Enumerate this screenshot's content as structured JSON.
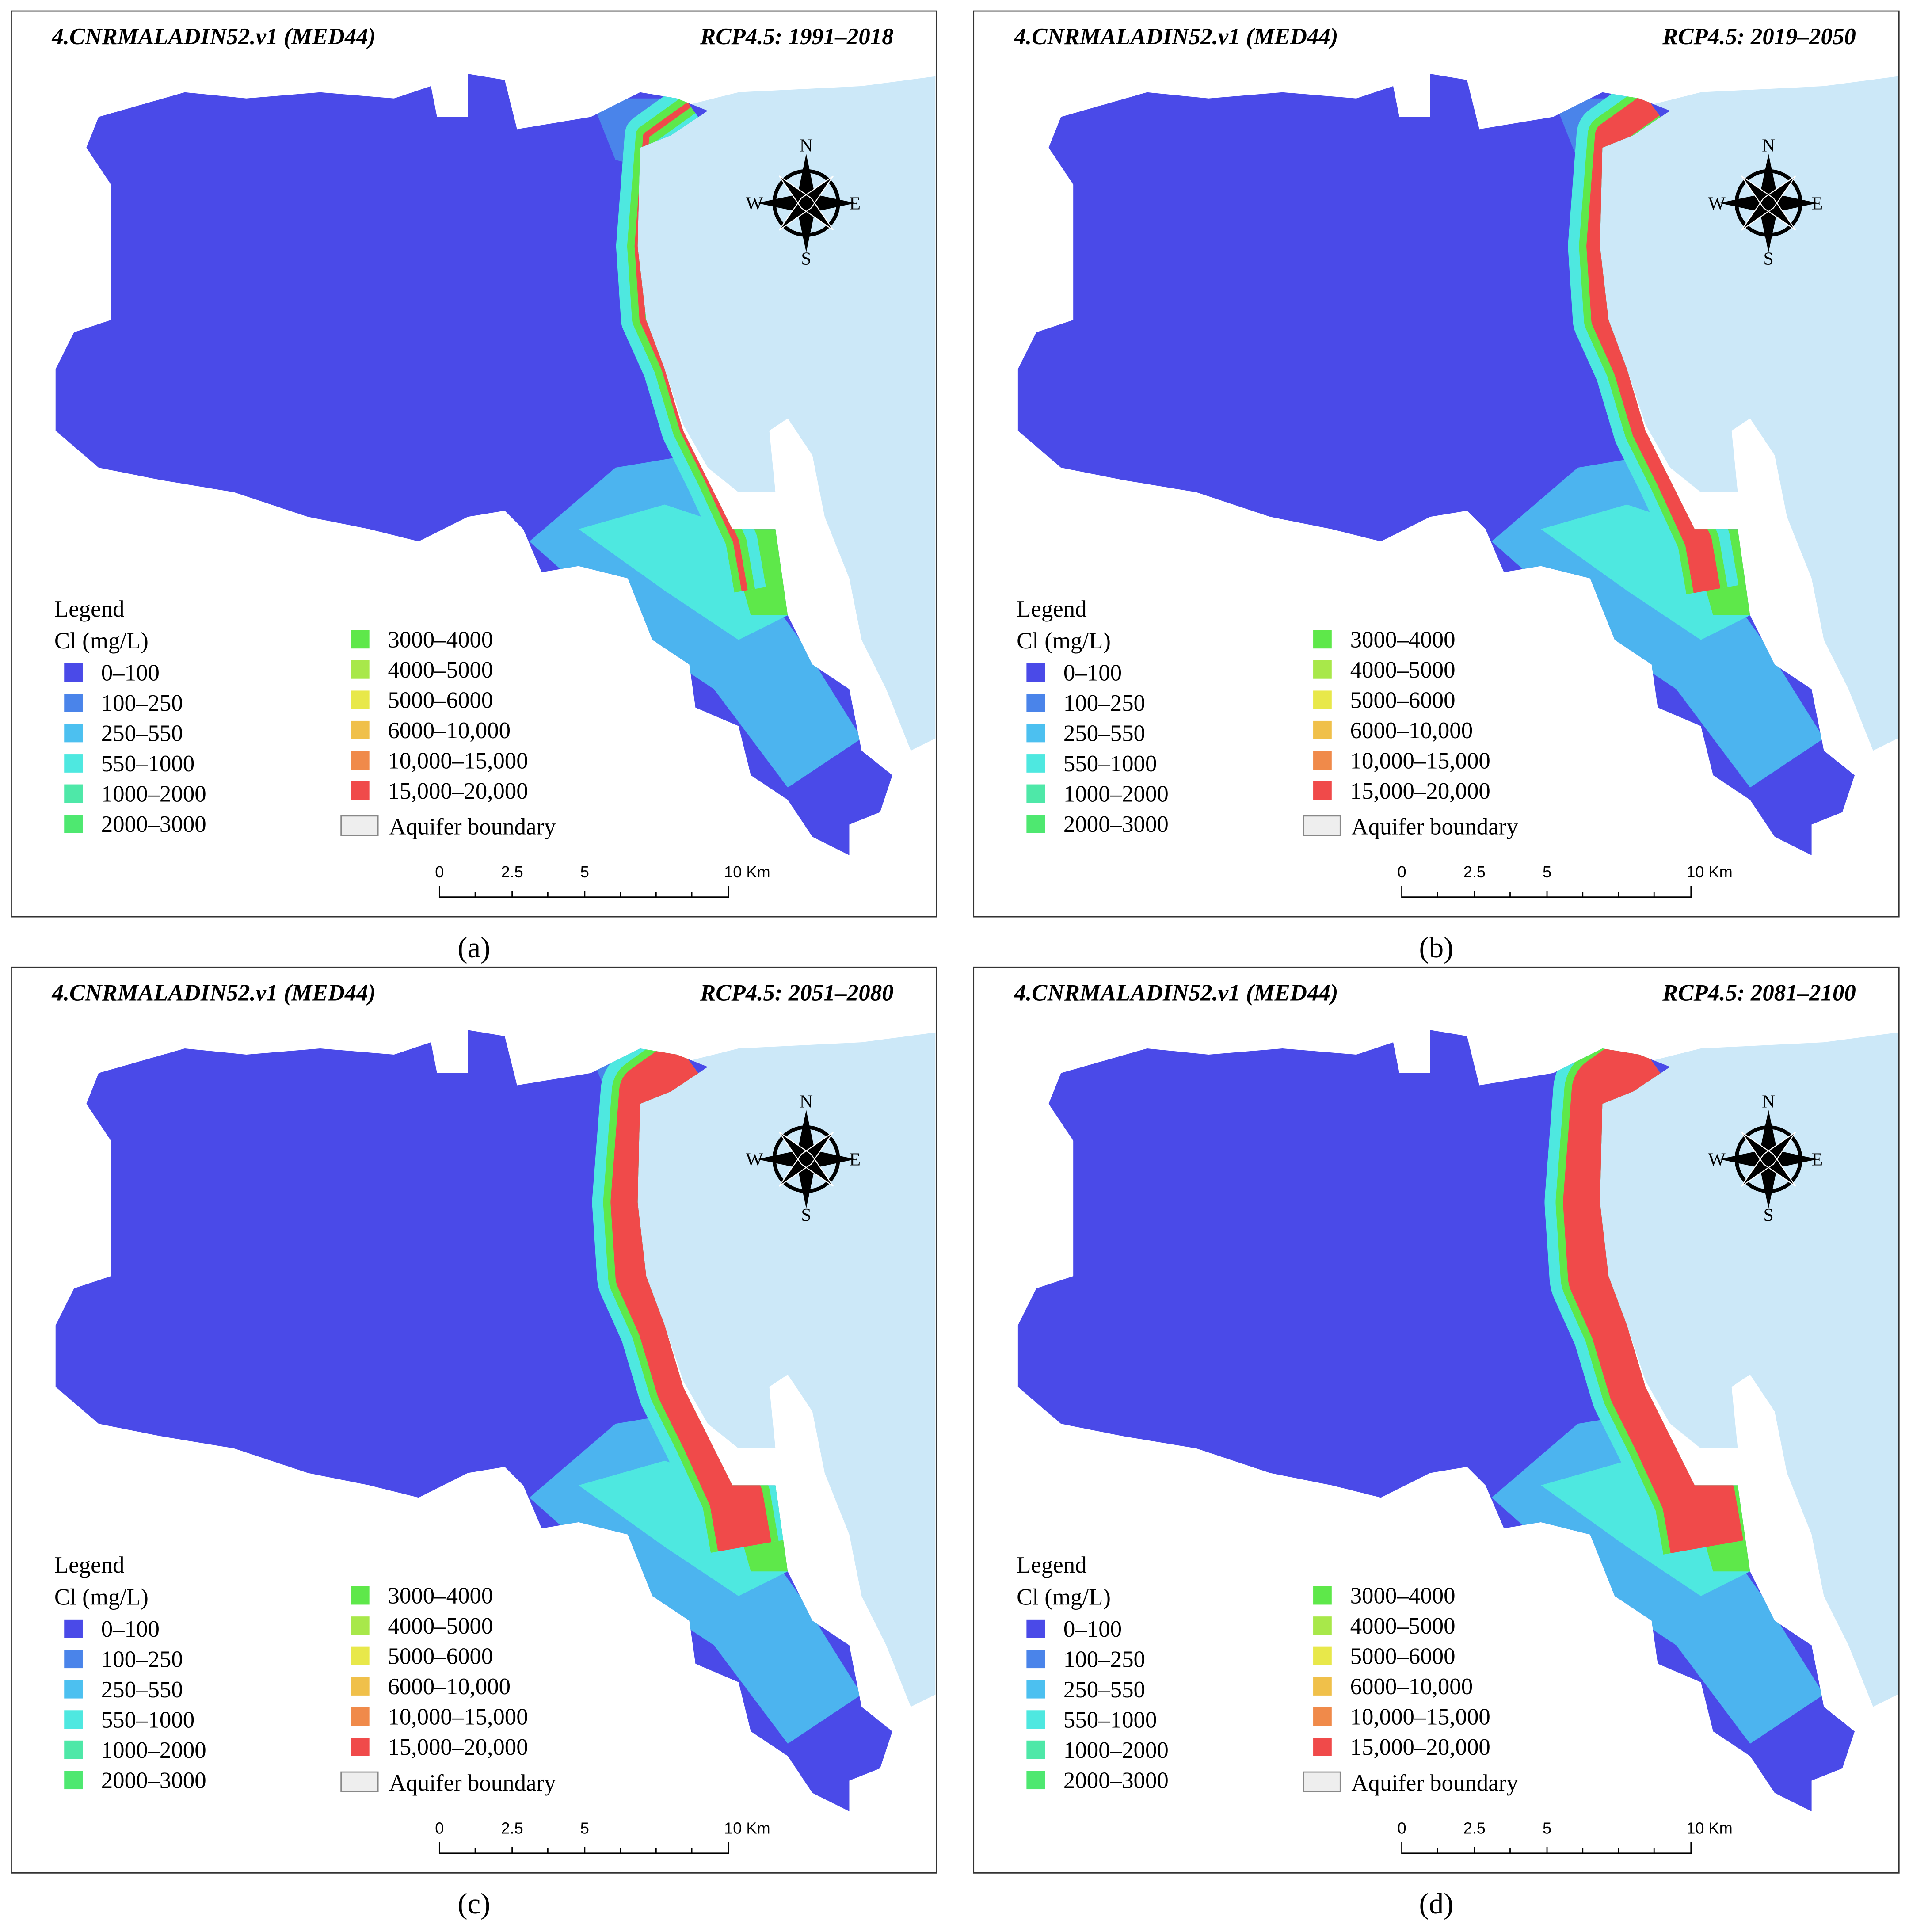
{
  "panels": [
    {
      "model": "4.CNRMALADIN52.v1 (MED44)",
      "scenario": "RCP4.5: 1991–2018",
      "caption": "(a)"
    },
    {
      "model": "4.CNRMALADIN52.v1 (MED44)",
      "scenario": "RCP4.5: 2019–2050",
      "caption": "(b)"
    },
    {
      "model": "4.CNRMALADIN52.v1 (MED44)",
      "scenario": "RCP4.5: 2051–2080",
      "caption": "(c)"
    },
    {
      "model": "4.CNRMALADIN52.v1 (MED44)",
      "scenario": "RCP4.5: 2081–2100",
      "caption": "(d)"
    }
  ],
  "legend": {
    "title": "Legend",
    "subtitle": "Cl (mg/L)",
    "items": [
      {
        "label": "0–100",
        "color": "#4a4ae8"
      },
      {
        "label": "100–250",
        "color": "#4a84ea"
      },
      {
        "label": "250–550",
        "color": "#4cc0f0"
      },
      {
        "label": "550–1000",
        "color": "#4ee8e0"
      },
      {
        "label": "1000–2000",
        "color": "#4ee8a8"
      },
      {
        "label": "2000–3000",
        "color": "#4ee870"
      },
      {
        "label": "3000–4000",
        "color": "#5ee84a"
      },
      {
        "label": "4000–5000",
        "color": "#a8e84a"
      },
      {
        "label": "5000–6000",
        "color": "#e8e84a"
      },
      {
        "label": "6000–10,000",
        "color": "#f0c04a"
      },
      {
        "label": "10,000–15,000",
        "color": "#f08a4a"
      },
      {
        "label": "15,000–20,000",
        "color": "#f04a4a"
      }
    ],
    "boundary": "Aquifer boundary"
  },
  "scale_bar": {
    "labels": [
      "0",
      "2.5",
      "5",
      "10 Km"
    ]
  },
  "compass": {
    "north": "N",
    "south": "S",
    "east": "E",
    "west": "W"
  }
}
